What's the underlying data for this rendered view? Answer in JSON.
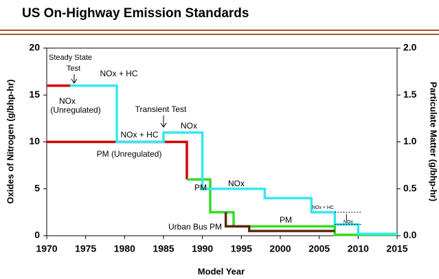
{
  "chart_data": {
    "type": "line",
    "title": "US On-Highway Emission Standards",
    "xlabel": "Model Year",
    "ylabel": "Oxides of Nitrogen (g/bhp-hr)",
    "y2label": "Particulate Matter (g/bhp-hr)",
    "xlim": [
      1970,
      2015
    ],
    "xticks": [
      1970,
      1975,
      1980,
      1985,
      1990,
      1995,
      2000,
      2005,
      2010,
      2015
    ],
    "ylim": [
      0,
      20
    ],
    "yticks": [
      0,
      5,
      10,
      15,
      20
    ],
    "y2lim": [
      0,
      2
    ],
    "y2ticks": [
      {
        "value": 0,
        "label": "0.0"
      },
      {
        "value": 0.5,
        "label": "0.5"
      },
      {
        "value": 1,
        "label": "1.0"
      },
      {
        "value": 1.5,
        "label": "1.5"
      },
      {
        "value": 2,
        "label": "2.0"
      }
    ],
    "series": [
      {
        "color": "#d40000",
        "x": [
          1970,
          1973
        ],
        "values": [
          16,
          16
        ]
      },
      {
        "color": "#d40000",
        "axis": "y2",
        "x": [
          1970,
          1988,
          1988
        ],
        "values": [
          1.0,
          1.0,
          0.6
        ]
      },
      {
        "color": "#33dd22",
        "axis": "y2",
        "x": [
          1988,
          1991,
          1991,
          1994,
          1994,
          2007,
          2007,
          2015
        ],
        "values": [
          0.6,
          0.6,
          0.25,
          0.25,
          0.1,
          0.1,
          0.01,
          0.01
        ]
      },
      {
        "color": "#5a2a10",
        "axis": "y2",
        "x": [
          1993,
          1993,
          1996,
          1996,
          2007
        ],
        "values": [
          0.25,
          0.1,
          0.1,
          0.05,
          0.05
        ]
      },
      {
        "color": "#33e8f2",
        "x": [
          1973,
          1979,
          1979,
          1985,
          1985,
          1990,
          1990,
          1998,
          1998,
          2004,
          2004,
          2007,
          2007,
          2010,
          2010,
          2015
        ],
        "values": [
          16,
          16,
          10,
          10,
          11,
          11,
          5,
          5,
          4,
          4,
          2.5,
          2.5,
          1.2,
          1.2,
          0.2,
          0.2
        ]
      }
    ],
    "annotations": [
      "Steady State",
      "Test",
      "NOx + HC",
      "NOx",
      "(Unregulated)",
      "Transient Test",
      "NOx + HC",
      "NOx",
      "PM (Unregulated)",
      "PM",
      "NOx",
      "NOx + HC",
      "NOx",
      "PM",
      "Urban Bus PM"
    ]
  }
}
